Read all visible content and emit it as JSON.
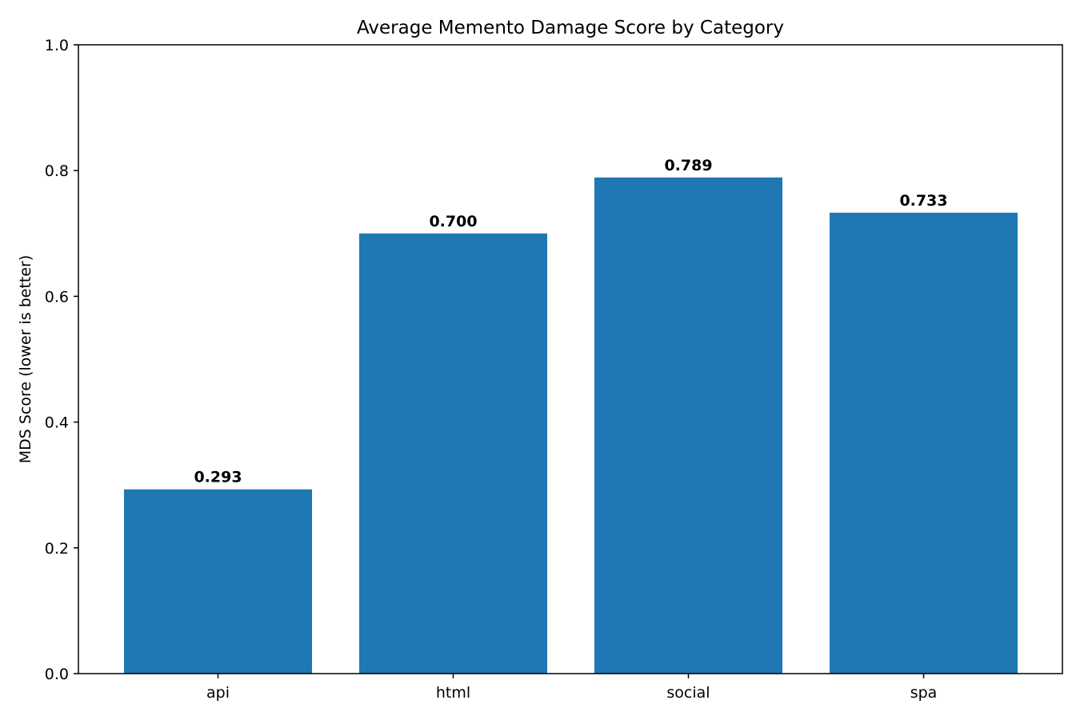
{
  "chart_data": {
    "type": "bar",
    "title": "Average Memento Damage Score by Category",
    "xlabel": "",
    "ylabel": "MDS Score (lower is better)",
    "categories": [
      "api",
      "html",
      "social",
      "spa"
    ],
    "values": [
      0.293,
      0.7,
      0.789,
      0.733
    ],
    "value_labels": [
      "0.293",
      "0.700",
      "0.789",
      "0.733"
    ],
    "ylim": [
      0.0,
      1.0
    ],
    "yticks": [
      0.0,
      0.2,
      0.4,
      0.6,
      0.8,
      1.0
    ],
    "ytick_labels": [
      "0.0",
      "0.2",
      "0.4",
      "0.6",
      "0.8",
      "1.0"
    ],
    "grid": false,
    "legend": "none",
    "colors": {
      "bar": "#1f77b4",
      "axis": "#000000",
      "text": "#000000",
      "background": "#ffffff"
    }
  }
}
